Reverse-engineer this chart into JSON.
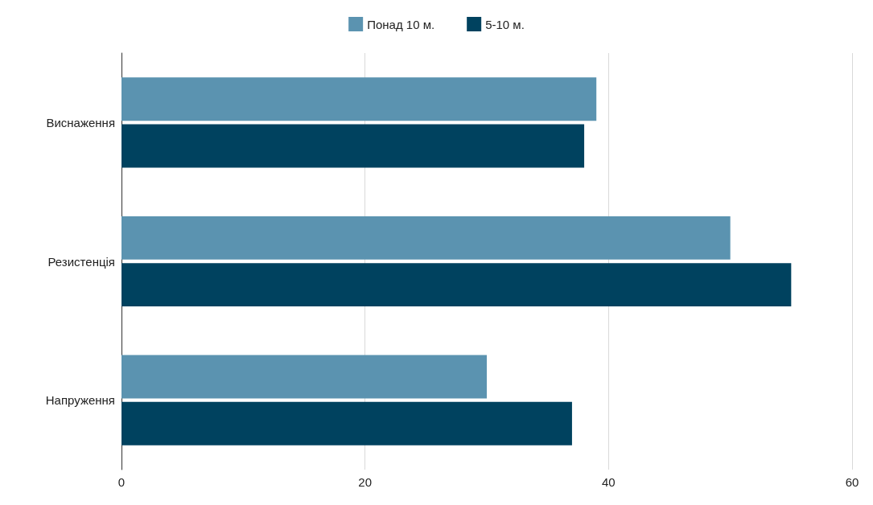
{
  "chart_data": {
    "type": "bar",
    "orientation": "horizontal",
    "categories": [
      "Виснаження",
      "Резистенція",
      "Напруження"
    ],
    "series": [
      {
        "name": "Понад 10 м.",
        "color": "#5b93b0",
        "values": [
          39,
          50,
          30
        ]
      },
      {
        "name": "5-10 м.",
        "color": "#00425f",
        "values": [
          38,
          55,
          37
        ]
      }
    ],
    "xlim": [
      0,
      60
    ],
    "xticks": [
      0,
      20,
      40,
      60
    ],
    "grid": "x",
    "legend": "top"
  }
}
